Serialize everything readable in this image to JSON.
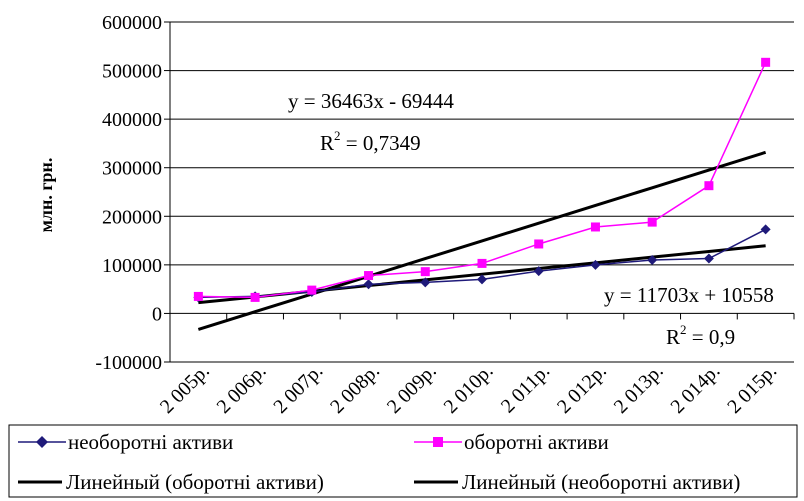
{
  "chart_data": {
    "type": "line",
    "title": "",
    "xlabel": "",
    "ylabel": "млн. грн.",
    "categories": [
      "2 005р.",
      "2 006р.",
      "2 007р.",
      "2 008р.",
      "2 009р.",
      "2 010р.",
      "2 011р.",
      "2 012р.",
      "2 013р.",
      "2 014р.",
      "2 015р."
    ],
    "ylim": [
      -100000,
      600000
    ],
    "yticks": [
      -100000,
      0,
      100000,
      200000,
      300000,
      400000,
      500000,
      600000
    ],
    "ytick_labels": [
      "-100000",
      "0",
      "100000",
      "200000",
      "300000",
      "400000",
      "500000",
      "600000"
    ],
    "grid": "horizontal",
    "legend_position": "bottom",
    "series": [
      {
        "name": "необоротні активи",
        "type": "line",
        "marker": "diamond",
        "color": "#1f1a7a",
        "values": [
          33000,
          35000,
          44000,
          60000,
          64000,
          70000,
          87000,
          100000,
          110000,
          113000,
          173000
        ]
      },
      {
        "name": "оборотні активи",
        "type": "line",
        "marker": "square",
        "color": "#ff00ff",
        "values": [
          35000,
          33000,
          48000,
          78000,
          86000,
          103000,
          143000,
          178000,
          188000,
          263000,
          517000
        ]
      },
      {
        "name": "Линейный (оборотні активи)",
        "type": "trendline",
        "color": "#000000",
        "slope": 36463,
        "intercept": -69444,
        "values": [
          -32981,
          3482,
          39945,
          76408,
          112871,
          149334,
          185797,
          222260,
          258723,
          295186,
          331649
        ]
      },
      {
        "name": "Линейный (необоротні активи)",
        "type": "trendline",
        "color": "#000000",
        "slope": 11703,
        "intercept": 10558,
        "values": [
          22261,
          33964,
          45667,
          57370,
          69073,
          80776,
          92479,
          104182,
          115885,
          127588,
          139291
        ]
      }
    ],
    "annotations": [
      {
        "equation": "y = 36463x - 69444",
        "r2_prefix": "R",
        "r2_sup": "2",
        "r2_value": " = 0,7349"
      },
      {
        "equation": "y = 11703x + 10558",
        "r2_prefix": "R",
        "r2_sup": "2",
        "r2_value": " = 0,9"
      }
    ]
  }
}
